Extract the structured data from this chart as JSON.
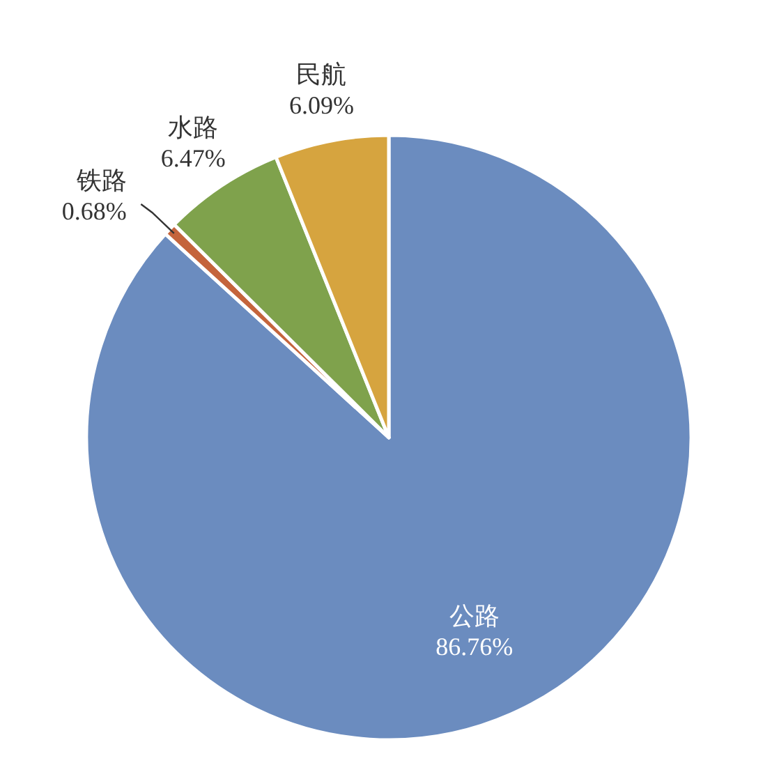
{
  "chart_data": {
    "type": "pie",
    "categories": [
      "公路",
      "铁路",
      "水路",
      "民航"
    ],
    "values": [
      86.76,
      0.68,
      6.47,
      6.09
    ],
    "colors": [
      "#6b8cbf",
      "#c4643c",
      "#7fa24c",
      "#d6a43f"
    ],
    "value_labels": [
      "86.76%",
      "0.68%",
      "6.47%",
      "6.09%"
    ],
    "legend": false
  }
}
